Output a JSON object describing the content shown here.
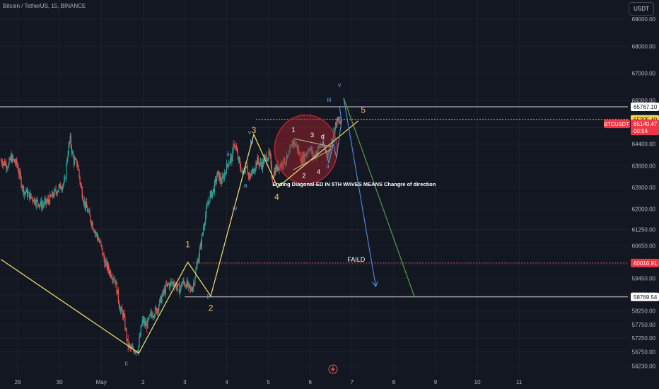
{
  "header": {
    "title": "Bitcoin / TetherUS, 15, BINANCE",
    "currency_button": "USDT"
  },
  "colors": {
    "background": "#131722",
    "grid": "#1e222d",
    "up": "#26a69a",
    "down": "#ef5350",
    "wave_line": "#e5d66a",
    "wave_label": "#f0c74a",
    "sub_label": "#5b9bd5",
    "blue_arrow": "#4f83d6",
    "green_arrow": "#5d9a4a",
    "circle": "#b3262f",
    "resistance": "#d1d4dc",
    "failed_level": "#ef5350"
  },
  "chart_data": {
    "type": "candlestick",
    "symbol": "BTCUSDT",
    "interval": "15",
    "exchange": "BINANCE",
    "ylim": [
      55900,
      69700
    ],
    "y_ticks": [
      69000,
      68000,
      67000,
      66000,
      65000,
      64400,
      63600,
      62800,
      62000,
      61250,
      60650,
      59950,
      59450,
      58850,
      58250,
      57750,
      57250,
      56750,
      56230
    ],
    "y_tick_labels": [
      "69000.00",
      "68000.00",
      "67000.00",
      "66000.00",
      "65000.00",
      "64400.00",
      "63600.00",
      "62800.00",
      "62000.00",
      "61250.00",
      "60650.00",
      "59950.00",
      "59450.00",
      "58850.00",
      "58250.00",
      "57750.00",
      "57250.00",
      "56750.00",
      "56230.00"
    ],
    "x_ticks": [
      28.4,
      29.4,
      30.4,
      31.4,
      32.4,
      33.4,
      34.4,
      35.4,
      36.4,
      37.4,
      38.4,
      39.4,
      40.4
    ],
    "x_tick_labels": [
      "29",
      "30",
      "May",
      "2",
      "3",
      "4",
      "5",
      "6",
      "7",
      "8",
      "9",
      "10",
      "11"
    ],
    "price_tags": [
      {
        "label": "65767.10",
        "value": 65767.1,
        "kind": "level"
      },
      {
        "label": "65305.40",
        "value": 65305.4,
        "kind": "dotted"
      },
      {
        "label": "BTCUSDT",
        "value": 65140.47,
        "kind": "symbol",
        "price": "65140.47",
        "countdown": "00:54"
      },
      {
        "label": "60016.91",
        "value": 60016.91,
        "kind": "failed"
      },
      {
        "label": "58769.54",
        "value": 58769.54,
        "kind": "level"
      }
    ],
    "price_path": [
      [
        28.0,
        63800
      ],
      [
        28.1,
        63700
      ],
      [
        28.2,
        63600
      ],
      [
        28.25,
        63900
      ],
      [
        28.4,
        63650
      ],
      [
        28.55,
        62700
      ],
      [
        28.7,
        62500
      ],
      [
        28.85,
        62300
      ],
      [
        29.0,
        62150
      ],
      [
        29.15,
        62300
      ],
      [
        29.3,
        62600
      ],
      [
        29.45,
        62850
      ],
      [
        29.55,
        63000
      ],
      [
        29.6,
        63900
      ],
      [
        29.67,
        64600
      ],
      [
        29.75,
        63800
      ],
      [
        29.85,
        63650
      ],
      [
        29.92,
        62900
      ],
      [
        30.0,
        62300
      ],
      [
        30.1,
        61900
      ],
      [
        30.25,
        61250
      ],
      [
        30.4,
        60700
      ],
      [
        30.5,
        60050
      ],
      [
        30.62,
        59700
      ],
      [
        30.75,
        59400
      ],
      [
        30.87,
        58300
      ],
      [
        30.95,
        58100
      ],
      [
        31.05,
        57000
      ],
      [
        31.15,
        56800
      ],
      [
        31.3,
        56850
      ],
      [
        31.4,
        57900
      ],
      [
        31.5,
        57700
      ],
      [
        31.6,
        58100
      ],
      [
        31.75,
        58300
      ],
      [
        31.9,
        58900
      ],
      [
        32.0,
        59200
      ],
      [
        32.15,
        59300
      ],
      [
        32.3,
        59000
      ],
      [
        32.35,
        59300
      ],
      [
        32.45,
        59250
      ],
      [
        32.55,
        59000
      ],
      [
        32.62,
        59200
      ],
      [
        32.7,
        59900
      ],
      [
        32.8,
        60700
      ],
      [
        32.9,
        61700
      ],
      [
        33.0,
        62400
      ],
      [
        33.1,
        62700
      ],
      [
        33.2,
        63300
      ],
      [
        33.3,
        63000
      ],
      [
        33.45,
        63700
      ],
      [
        33.55,
        63900
      ],
      [
        33.6,
        64500
      ],
      [
        33.7,
        63800
      ],
      [
        33.8,
        63300
      ],
      [
        33.9,
        63700
      ],
      [
        33.95,
        63100
      ],
      [
        34.05,
        63400
      ],
      [
        34.15,
        63800
      ],
      [
        34.25,
        63600
      ],
      [
        34.35,
        63900
      ],
      [
        34.45,
        64000
      ],
      [
        34.5,
        63200
      ],
      [
        34.6,
        63500
      ],
      [
        34.75,
        63700
      ],
      [
        34.9,
        63900
      ],
      [
        35.0,
        64500
      ],
      [
        35.1,
        64300
      ],
      [
        35.2,
        63800
      ],
      [
        35.3,
        64000
      ],
      [
        35.4,
        64300
      ],
      [
        35.5,
        63900
      ],
      [
        35.6,
        64200
      ],
      [
        35.7,
        64400
      ],
      [
        35.85,
        64000
      ],
      [
        35.95,
        64600
      ],
      [
        36.05,
        65250
      ],
      [
        36.15,
        65150
      ]
    ],
    "annotations": [
      {
        "text": "1",
        "x": 32.47,
        "y": 60600,
        "color": "wave_label"
      },
      {
        "text": "2",
        "x": 33.02,
        "y": 58250,
        "color": "wave_label"
      },
      {
        "text": "3",
        "x": 34.05,
        "y": 64800,
        "color": "wave_label"
      },
      {
        "text": "4",
        "x": 34.6,
        "y": 62350,
        "color": "wave_label"
      },
      {
        "text": "5",
        "x": 36.67,
        "y": 65550,
        "color": "wave_label"
      },
      {
        "text": "c",
        "x": 31.0,
        "y": 56250,
        "color": "sub_label"
      },
      {
        "text": "ii",
        "x": 32.96,
        "y": 58700,
        "color": "sub_label"
      },
      {
        "text": "iii",
        "x": 33.45,
        "y": 63950,
        "color": "sub_label"
      },
      {
        "text": "iv",
        "x": 33.6,
        "y": 61950,
        "color": "sub_label"
      },
      {
        "text": "v",
        "x": 33.95,
        "y": 64750,
        "color": "sub_label"
      },
      {
        "text": "a",
        "x": 33.85,
        "y": 62800,
        "color": "sub_label"
      },
      {
        "text": "b",
        "x": 34.0,
        "y": 64400,
        "color": "sub_label"
      },
      {
        "text": "1",
        "x": 35.0,
        "y": 64850,
        "color": "white"
      },
      {
        "text": "2",
        "x": 35.25,
        "y": 63150,
        "color": "white"
      },
      {
        "text": "3",
        "x": 35.45,
        "y": 64650,
        "color": "white"
      },
      {
        "text": "4",
        "x": 35.6,
        "y": 63300,
        "color": "white"
      },
      {
        "text": "d",
        "x": 35.7,
        "y": 64600,
        "color": "white"
      },
      {
        "text": "iii",
        "x": 35.85,
        "y": 65950,
        "color": "sub_label"
      },
      {
        "text": "iv",
        "x": 35.95,
        "y": 64450,
        "color": "sub_label"
      },
      {
        "text": "ii",
        "x": 35.82,
        "y": 63500,
        "color": "sub_label"
      },
      {
        "text": "v",
        "x": 36.1,
        "y": 66500,
        "color": "sub_label"
      },
      {
        "text": "Ending Diagonal-ED IN 5TH WAVES MEANS Changre of direction",
        "x": 36.45,
        "y": 62850,
        "color": "white"
      },
      {
        "text": "FAILD",
        "x": 36.5,
        "y": 60070,
        "color": "white"
      }
    ],
    "wave_path": [
      [
        28.0,
        60150
      ],
      [
        31.3,
        56700
      ],
      [
        32.47,
        60050
      ],
      [
        33.02,
        58800
      ],
      [
        34.05,
        64750
      ],
      [
        34.62,
        62800
      ],
      [
        36.55,
        65250
      ]
    ],
    "diagonal_lines": [
      {
        "from": [
          35.0,
          64600
        ],
        "to": [
          35.9,
          64300
        ]
      },
      {
        "from": [
          35.0,
          63450
        ],
        "to": [
          35.9,
          64200
        ]
      }
    ],
    "projections": [
      {
        "from": [
          36.2,
          66100
        ],
        "to": [
          36.97,
          59150
        ],
        "color": "blue_arrow"
      },
      {
        "from": [
          36.2,
          66100
        ],
        "to": [
          37.9,
          58750
        ],
        "color": "green_arrow"
      }
    ],
    "circle": {
      "center": [
        35.3,
        64200
      ],
      "rx": 1.01,
      "ry": 1.25
    },
    "levels": [
      {
        "value": 65767.1,
        "style": "solid",
        "color": "resistance"
      },
      {
        "value": 65305.4,
        "style": "dotted",
        "color": "wave_label"
      },
      {
        "value": 60016.91,
        "style": "dotted",
        "color": "failed_level"
      },
      {
        "value": 58769.54,
        "style": "solid",
        "color": "resistance"
      }
    ],
    "grid": true
  },
  "footer": {
    "icon": "lightning-icon"
  }
}
